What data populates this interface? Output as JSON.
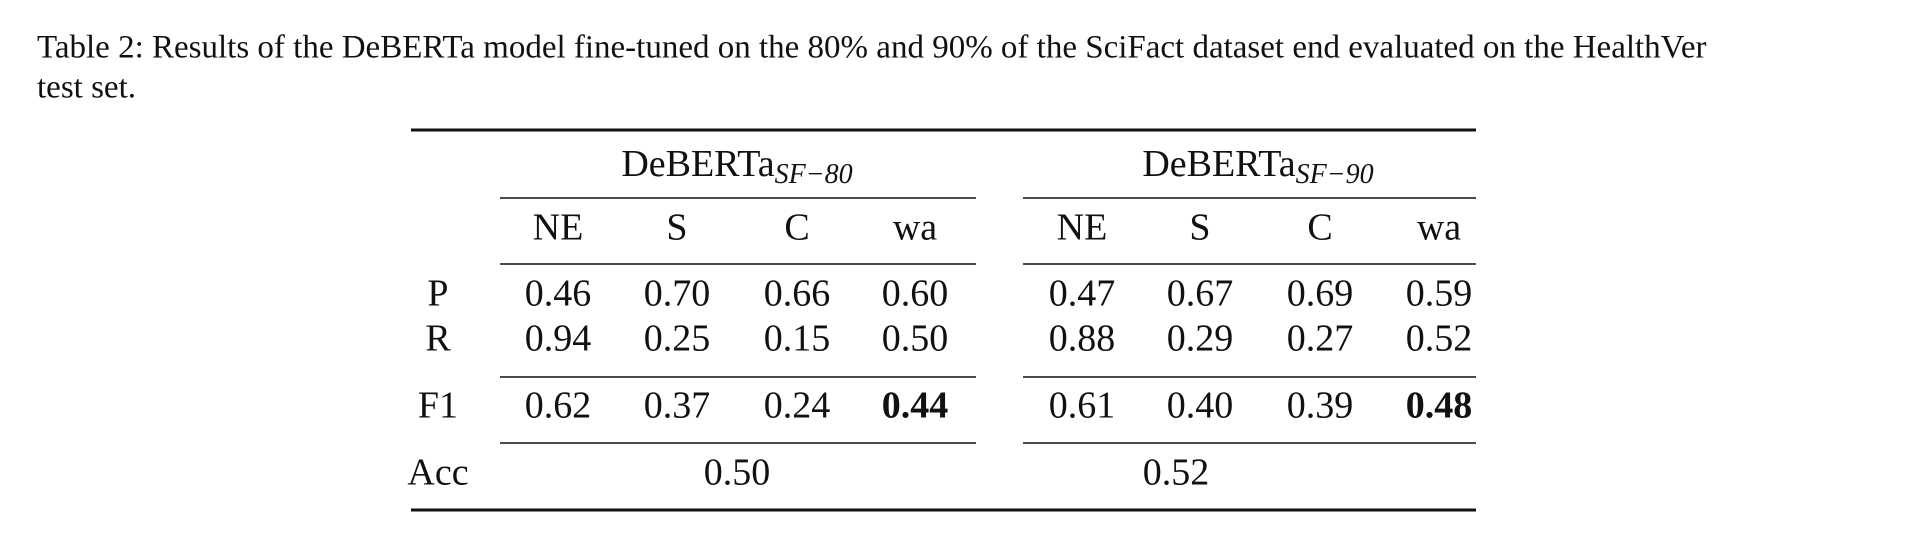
{
  "caption": {
    "lines": [
      "Table 2: Results of the DeBERTa model fine-tuned on the 80% and 90% of the SciFact dataset end evaluated on the HealthVer",
      "test set."
    ]
  },
  "table": {
    "groups": [
      {
        "name": "DeBERTa",
        "subscript": "SF−80"
      },
      {
        "name": "DeBERTa",
        "subscript": "SF−90"
      }
    ],
    "columns": [
      "NE",
      "S",
      "C",
      "wa",
      "NE",
      "S",
      "C",
      "wa"
    ],
    "rows": [
      {
        "label": "P",
        "cells": [
          "0.46",
          "0.70",
          "0.66",
          "0.60",
          "0.47",
          "0.67",
          "0.69",
          "0.59"
        ]
      },
      {
        "label": "R",
        "cells": [
          "0.94",
          "0.25",
          "0.15",
          "0.50",
          "0.88",
          "0.29",
          "0.27",
          "0.52"
        ]
      },
      {
        "label": "F1",
        "cells": [
          "0.62",
          "0.37",
          "0.24",
          "0.44",
          "0.61",
          "0.40",
          "0.39",
          "0.48"
        ]
      }
    ],
    "accuracy": {
      "label": "Acc",
      "values": [
        "0.50",
        "0.52"
      ]
    },
    "bold_cells": [
      [
        2,
        3
      ],
      [
        2,
        7
      ]
    ]
  }
}
